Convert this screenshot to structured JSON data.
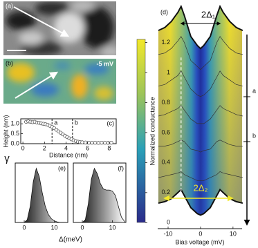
{
  "images": [
    {
      "label": "(a)"
    },
    {
      "label": "(b)",
      "annotation": "-5 mV"
    }
  ],
  "chart_data": [
    {
      "type": "scatter",
      "label": "(c)",
      "xlabel": "Distance (nm)",
      "ylabel": "Height (nm)",
      "xlim": [
        -0.2,
        8.65
      ],
      "xticks": [
        0,
        2,
        4,
        6,
        8
      ],
      "ylim": [
        0,
        1.25
      ],
      "yticks": [
        {
          "value": 0,
          "label": "0.0"
        },
        0.5,
        {
          "value": 1,
          "label": "1.0"
        }
      ],
      "markers": [
        {
          "label": "a",
          "x": 2.7
        },
        {
          "label": "b",
          "x": 4.6
        }
      ],
      "color": "#555555",
      "x": [
        0.3,
        0.5,
        0.7,
        0.9,
        1.1,
        1.3,
        1.5,
        1.7,
        1.9,
        2.1,
        2.3,
        2.5,
        2.7,
        2.9,
        3.1,
        3.3,
        3.5,
        3.7,
        3.9,
        4.1,
        4.3,
        4.5,
        4.7,
        4.9,
        5.1,
        5.3,
        5.5,
        5.8,
        6.1,
        6.4,
        6.7,
        7.0,
        7.3,
        7.6,
        7.9,
        8.2
      ],
      "values": [
        1.1,
        1.12,
        1.1,
        1.08,
        1.1,
        1.06,
        1.05,
        1.02,
        1.0,
        0.98,
        0.95,
        0.9,
        0.85,
        0.78,
        0.7,
        0.62,
        0.55,
        0.47,
        0.4,
        0.33,
        0.27,
        0.22,
        0.17,
        0.13,
        0.1,
        0.08,
        0.07,
        0.06,
        0.05,
        0.05,
        0.05,
        0.04,
        0.05,
        0.05,
        0.04,
        0.05
      ]
    },
    {
      "type": "line",
      "label": "(d)",
      "xlabel": "Bias voltage (mV)",
      "ylabel": "Normalized conductance",
      "xlim": [
        -13.2,
        12.8
      ],
      "xticks": [
        -10,
        0,
        10
      ],
      "ylim": [
        -0.04,
        1.46
      ],
      "yticks": [
        0,
        0.2,
        0.4,
        0.6,
        0.8,
        1,
        1.2
      ],
      "gap_label": "2Δ₁",
      "gap_x": 6,
      "gap2_label": "2Δ₂",
      "marker_x": -6,
      "markers": [
        {
          "label": "a"
        },
        {
          "label": "b"
        }
      ],
      "x": [
        -13,
        -11,
        -9,
        -7,
        -6,
        -5,
        -3,
        -1,
        0,
        1,
        3,
        5,
        6,
        7,
        9,
        11,
        13
      ],
      "series": [
        {
          "color": "#111111",
          "values": [
            1.28,
            1.3,
            1.34,
            1.4,
            1.44,
            1.38,
            1.24,
            1.18,
            1.16,
            1.18,
            1.24,
            1.38,
            1.44,
            1.4,
            1.34,
            1.3,
            1.28
          ]
        },
        {
          "color": "#333333",
          "values": [
            1.12,
            1.13,
            1.16,
            1.21,
            1.24,
            1.2,
            1.08,
            1.04,
            1.02,
            1.04,
            1.08,
            1.2,
            1.24,
            1.21,
            1.16,
            1.13,
            1.12
          ]
        },
        {
          "color": "#333333",
          "values": [
            0.91,
            0.92,
            0.95,
            0.98,
            1.01,
            0.97,
            0.89,
            0.85,
            0.84,
            0.85,
            0.89,
            0.97,
            1.01,
            0.98,
            0.95,
            0.92,
            0.91
          ]
        },
        {
          "color": "#333333",
          "values": [
            0.71,
            0.72,
            0.74,
            0.76,
            0.78,
            0.75,
            0.69,
            0.66,
            0.66,
            0.66,
            0.69,
            0.75,
            0.78,
            0.76,
            0.74,
            0.72,
            0.71
          ]
        },
        {
          "color": "#333333",
          "values": [
            0.51,
            0.51,
            0.52,
            0.54,
            0.55,
            0.54,
            0.49,
            0.48,
            0.47,
            0.48,
            0.49,
            0.54,
            0.55,
            0.54,
            0.52,
            0.51,
            0.51
          ]
        },
        {
          "color": "#333333",
          "values": [
            0.3,
            0.31,
            0.32,
            0.33,
            0.34,
            0.32,
            0.3,
            0.28,
            0.28,
            0.28,
            0.3,
            0.32,
            0.34,
            0.33,
            0.32,
            0.31,
            0.3
          ]
        },
        {
          "color": "#111111",
          "values": [
            0.13,
            0.14,
            0.16,
            0.2,
            0.22,
            0.18,
            0.1,
            0.06,
            0.05,
            0.06,
            0.1,
            0.18,
            0.22,
            0.2,
            0.16,
            0.14,
            0.13
          ]
        }
      ]
    },
    {
      "type": "area",
      "label": "(e)",
      "ylabel": "γ",
      "xlabel": "Δ(meV)",
      "xlim": [
        -3,
        14.5
      ],
      "xticks": [
        0,
        10
      ],
      "ylim": [
        0,
        1.1
      ],
      "x": [
        0,
        1,
        2,
        3,
        4,
        5,
        6,
        7,
        8,
        9,
        10,
        11,
        12,
        13,
        14
      ],
      "values": [
        0,
        0.05,
        0.3,
        0.75,
        1.0,
        0.85,
        0.55,
        0.3,
        0.15,
        0.07,
        0.03,
        0.01,
        0,
        0,
        0
      ]
    },
    {
      "type": "area",
      "label": "(f)",
      "xlim": [
        -3,
        14.5
      ],
      "xticks": [
        0,
        10
      ],
      "ylim": [
        0,
        1.1
      ],
      "x": [
        0,
        1,
        2,
        3,
        4,
        5,
        6,
        7,
        8,
        9,
        10,
        11,
        12,
        13,
        14
      ],
      "values": [
        0,
        0.05,
        0.35,
        0.8,
        1.0,
        0.9,
        0.72,
        0.62,
        0.6,
        0.6,
        0.58,
        0.5,
        0.3,
        0.1,
        0.02
      ]
    }
  ]
}
